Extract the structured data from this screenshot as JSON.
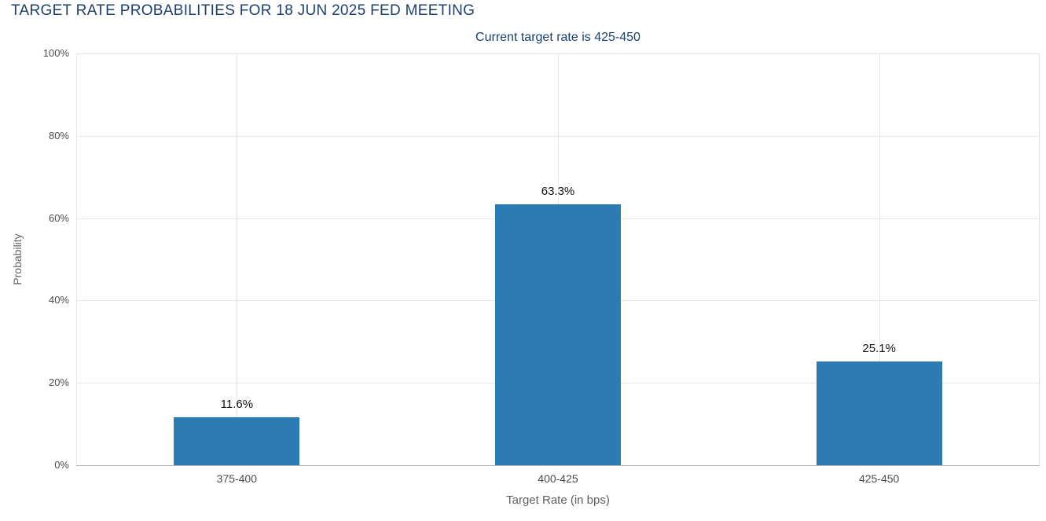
{
  "chart_data": {
    "type": "bar",
    "title": "TARGET RATE PROBABILITIES FOR 18 JUN 2025 FED MEETING",
    "subtitle": "Current target rate is 425-450",
    "categories": [
      "375-400",
      "400-425",
      "425-450"
    ],
    "values": [
      11.6,
      63.3,
      25.1
    ],
    "value_labels": [
      "11.6%",
      "63.3%",
      "25.1%"
    ],
    "xlabel": "Target Rate (in bps)",
    "ylabel": "Probability",
    "ylim": [
      0,
      100
    ],
    "ytick_step": 20,
    "ytick_labels": [
      "0%",
      "20%",
      "40%",
      "60%",
      "80%",
      "100%"
    ],
    "grid": true,
    "legend": "none",
    "colors": {
      "bar": "#2d7bb4",
      "title": "#1c3f6e",
      "subtitle": "#1c3f6e",
      "gridline": "#e6e6e6",
      "axis_line": "#b3b3b3",
      "tick_label": "#4d4d4d",
      "value_label": "#111111",
      "background": "#ffffff"
    }
  }
}
